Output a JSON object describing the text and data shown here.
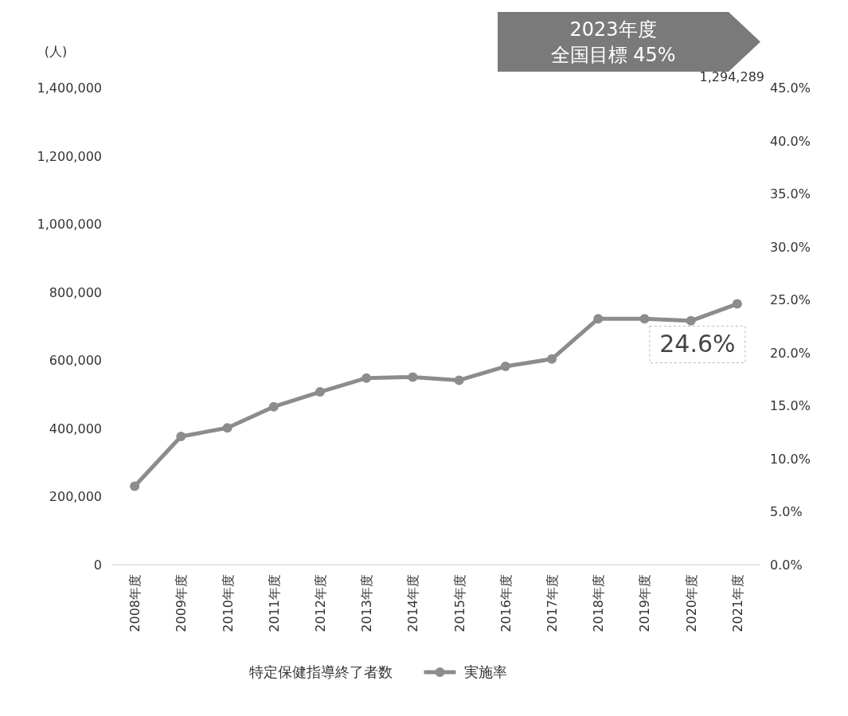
{
  "chart_data": {
    "type": "line",
    "ylabel": "(人)",
    "categories": [
      "2008年度",
      "2009年度",
      "2010年度",
      "2011年度",
      "2012年度",
      "2013年度",
      "2014年度",
      "2015年度",
      "2016年度",
      "2017年度",
      "2018年度",
      "2019年度",
      "2020年度",
      "2021年度"
    ],
    "series": [
      {
        "name": "実施率",
        "color": "#8c8c8c",
        "axis": "y2",
        "values": [
          7.4,
          12.1,
          12.9,
          14.9,
          16.3,
          17.6,
          17.7,
          17.4,
          18.7,
          19.4,
          23.2,
          23.2,
          23.0,
          24.6
        ],
        "value_labels": [
          null,
          null,
          null,
          null,
          null,
          null,
          null,
          null,
          null,
          null,
          null,
          null,
          null,
          "24.6%"
        ]
      }
    ],
    "ylim": [
      0,
      1400000
    ],
    "yticks": [
      0,
      {
        "value": 200000,
        "label": "200,000"
      },
      {
        "value": 400000,
        "label": "400,000"
      },
      {
        "value": 600000,
        "label": "600,000"
      },
      {
        "value": 800000,
        "label": "800,000"
      },
      {
        "value": 1000000,
        "label": "1,000,000"
      },
      {
        "value": 1200000,
        "label": "1,200,000"
      },
      {
        "value": 1400000,
        "label": "1,400,000"
      }
    ],
    "y2lim": [
      0,
      45
    ],
    "y2ticks": [
      {
        "value": 0,
        "label": "0.0%"
      },
      {
        "value": 5,
        "label": "5.0%"
      },
      {
        "value": 10,
        "label": "10.0%"
      },
      {
        "value": 15,
        "label": "15.0%"
      },
      {
        "value": 20,
        "label": "20.0%"
      },
      {
        "value": 25,
        "label": "25.0%"
      },
      {
        "value": 30,
        "label": "30.0%"
      },
      {
        "value": 35,
        "label": "35.0%"
      },
      {
        "value": 40,
        "label": "40.0%"
      },
      {
        "value": 45,
        "label": "45.0%"
      }
    ],
    "annotations": [
      "2023年度",
      "全国目標 45%",
      "1,294,289",
      "特定保健指導終了者数"
    ],
    "marker": "circle",
    "legend": "bottom",
    "grid": false
  }
}
